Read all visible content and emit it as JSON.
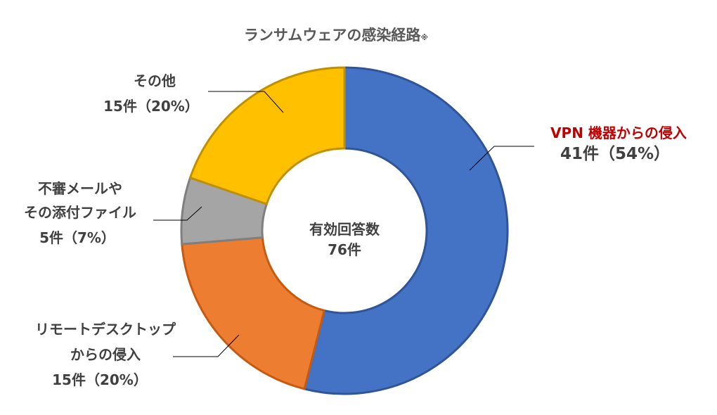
{
  "chart_data": {
    "type": "pie",
    "title": "ランサムウェアの感染経路",
    "title_note": "※",
    "center_label": [
      "有効回答数",
      "76件"
    ],
    "total": 76,
    "start_angle_deg": 0,
    "direction": "clockwise",
    "slices": [
      {
        "name": "VPN 機器からの侵入",
        "value": 41,
        "percent": 54,
        "color": "#4472C4",
        "border": "#2F5597",
        "label_lines": [
          "VPN 機器からの侵入",
          "41件（54%）"
        ],
        "emphasis": true
      },
      {
        "name": "リモートデスクトップからの侵入",
        "value": 15,
        "percent": 20,
        "color": "#ED7D31",
        "border": "#C55A11",
        "label_lines": [
          "リモートデスクトップ",
          "からの侵入",
          "15件（20%）"
        ],
        "emphasis": false
      },
      {
        "name": "不審メールやその添付ファイル",
        "value": 5,
        "percent": 7,
        "color": "#A5A5A5",
        "border": "#7F7F7F",
        "label_lines": [
          "不審メールや",
          "その添付ファイル",
          "5件（7%）"
        ],
        "emphasis": false
      },
      {
        "name": "その他",
        "value": 15,
        "percent": 20,
        "color": "#FFC000",
        "border": "#BF9000",
        "label_lines": [
          "その他",
          "15件（20%）"
        ],
        "emphasis": false
      }
    ],
    "legend": "none"
  }
}
